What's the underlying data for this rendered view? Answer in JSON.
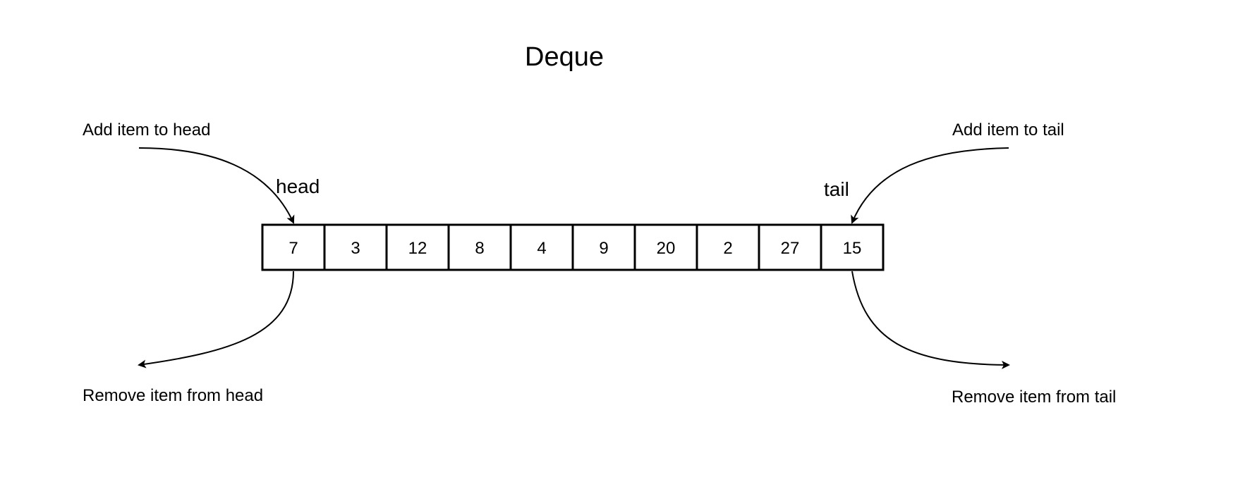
{
  "diagram": {
    "title": "Deque",
    "pointers": {
      "head": "head",
      "tail": "tail"
    },
    "operations": {
      "add_head": "Add item to head",
      "add_tail": "Add item to tail",
      "remove_head": "Remove item from head",
      "remove_tail": "Remove item from tail"
    },
    "items": [
      "7",
      "3",
      "12",
      "8",
      "4",
      "9",
      "20",
      "2",
      "27",
      "15"
    ],
    "colors": {
      "stroke": "#000000",
      "background": "#ffffff"
    }
  }
}
